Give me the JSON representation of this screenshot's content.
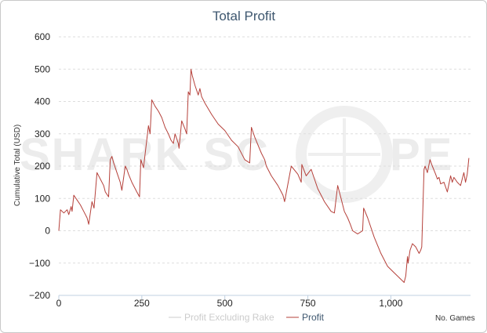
{
  "chart_data": {
    "type": "line",
    "title": "Total Profit",
    "xlabel": "No. Games",
    "ylabel": "Cumulative Total (USD)",
    "watermark": "SHARKSCOPE",
    "ylim": [
      -200,
      600
    ],
    "xlim": [
      0,
      1240
    ],
    "yticks": [
      -200,
      -100,
      0,
      100,
      200,
      300,
      400,
      500,
      600
    ],
    "ytick_labels": [
      "−200",
      "−100",
      "0",
      "100",
      "200",
      "300",
      "400",
      "500",
      "600"
    ],
    "xticks": [
      0,
      250,
      500,
      750,
      1000
    ],
    "xtick_labels": [
      "0",
      "250",
      "500",
      "750",
      "1,000"
    ],
    "grid": true,
    "legend_position": "bottom-center",
    "series": [
      {
        "name": "Profit Excluding Rake",
        "color": "#cccccc",
        "x": [],
        "y": []
      },
      {
        "name": "Profit",
        "color": "#b5403a",
        "x": [
          0,
          5,
          15,
          25,
          30,
          37,
          40,
          45,
          55,
          65,
          75,
          85,
          90,
          100,
          106,
          115,
          125,
          135,
          140,
          150,
          155,
          160,
          165,
          175,
          185,
          190,
          200,
          205,
          210,
          220,
          235,
          243,
          247,
          255,
          270,
          275,
          280,
          290,
          300,
          310,
          320,
          330,
          338,
          345,
          350,
          360,
          362,
          370,
          380,
          385,
          390,
          395,
          398,
          402,
          410,
          420,
          425,
          430,
          440,
          460,
          480,
          500,
          520,
          540,
          560,
          575,
          580,
          590,
          600,
          610,
          620,
          625,
          640,
          660,
          670,
          675,
          680,
          700,
          720,
          730,
          732,
          745,
          760,
          780,
          790,
          800,
          820,
          830,
          840,
          850,
          860,
          870,
          878,
          885,
          900,
          915,
          918,
          930,
          950,
          970,
          990,
          1010,
          1030,
          1040,
          1045,
          1050,
          1052,
          1058,
          1065,
          1075,
          1085,
          1090,
          1093,
          1100,
          1103,
          1110,
          1118,
          1125,
          1135,
          1140,
          1145,
          1150,
          1160,
          1170,
          1180,
          1185,
          1190,
          1200,
          1210,
          1220,
          1225,
          1230,
          1235
        ],
        "y": [
          0,
          65,
          55,
          65,
          50,
          75,
          60,
          110,
          95,
          80,
          60,
          40,
          20,
          90,
          70,
          180,
          160,
          140,
          120,
          105,
          220,
          230,
          210,
          180,
          150,
          125,
          200,
          190,
          175,
          150,
          120,
          105,
          220,
          195,
          325,
          300,
          405,
          385,
          370,
          350,
          320,
          300,
          280,
          270,
          300,
          270,
          255,
          340,
          315,
          300,
          430,
          420,
          500,
          480,
          450,
          420,
          440,
          415,
          395,
          360,
          330,
          310,
          280,
          260,
          220,
          210,
          320,
          290,
          265,
          240,
          220,
          200,
          170,
          140,
          120,
          110,
          90,
          200,
          175,
          150,
          205,
          170,
          190,
          130,
          110,
          90,
          60,
          55,
          140,
          100,
          60,
          40,
          20,
          0,
          -10,
          0,
          70,
          40,
          -20,
          -70,
          -110,
          -130,
          -150,
          -160,
          -140,
          -80,
          -100,
          -60,
          -40,
          -50,
          -70,
          -60,
          -50,
          190,
          200,
          180,
          220,
          200,
          175,
          160,
          165,
          145,
          150,
          120,
          170,
          150,
          165,
          150,
          140,
          180,
          150,
          175,
          225
        ]
      }
    ]
  }
}
